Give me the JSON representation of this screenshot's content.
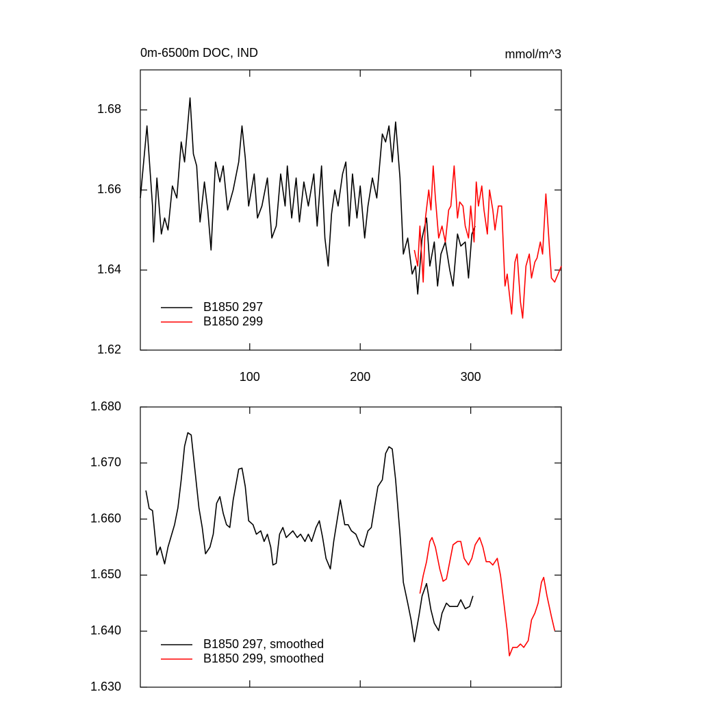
{
  "chart_data": [
    {
      "type": "line",
      "title": "0m-6500m DOC, IND",
      "right_title": "mmol/m^3",
      "xlim": [
        1,
        382
      ],
      "xticks": [
        100,
        200,
        300
      ],
      "x_tick_labels": true,
      "ylim": [
        1.62,
        1.69
      ],
      "yticks": [
        1.62,
        1.64,
        1.66,
        1.68
      ],
      "legend": "lower left",
      "series": [
        {
          "name": "B1850 297",
          "color": "#000000",
          "x": [
            1,
            7,
            12,
            13,
            16,
            20,
            23,
            26,
            30,
            34,
            38,
            41,
            46,
            49,
            52,
            55,
            59,
            62,
            65,
            69,
            73,
            76,
            80,
            85,
            90,
            93,
            96,
            99,
            104,
            107,
            111,
            116,
            120,
            124,
            128,
            132,
            134,
            138,
            142,
            145,
            149,
            153,
            158,
            161,
            165,
            168,
            171,
            174,
            177,
            180,
            184,
            187,
            190,
            193,
            197,
            200,
            204,
            207,
            211,
            215,
            220,
            223,
            226,
            229,
            232,
            236,
            239,
            243,
            247,
            250,
            252,
            256,
            260,
            263,
            267,
            270,
            273,
            277,
            281,
            284,
            288,
            291,
            295,
            298,
            301,
            304
          ],
          "values": [
            1.658,
            1.676,
            1.656,
            1.647,
            1.663,
            1.649,
            1.653,
            1.65,
            1.661,
            1.658,
            1.672,
            1.667,
            1.683,
            1.669,
            1.666,
            1.652,
            1.662,
            1.655,
            1.645,
            1.667,
            1.662,
            1.666,
            1.655,
            1.66,
            1.667,
            1.676,
            1.668,
            1.656,
            1.664,
            1.653,
            1.656,
            1.663,
            1.648,
            1.651,
            1.664,
            1.656,
            1.666,
            1.653,
            1.663,
            1.652,
            1.662,
            1.656,
            1.664,
            1.651,
            1.666,
            1.648,
            1.641,
            1.654,
            1.66,
            1.656,
            1.664,
            1.667,
            1.651,
            1.664,
            1.653,
            1.661,
            1.648,
            1.656,
            1.663,
            1.658,
            1.674,
            1.672,
            1.676,
            1.667,
            1.677,
            1.663,
            1.644,
            1.648,
            1.639,
            1.641,
            1.634,
            1.648,
            1.653,
            1.641,
            1.647,
            1.636,
            1.644,
            1.647,
            1.64,
            1.636,
            1.649,
            1.646,
            1.647,
            1.638,
            1.649,
            1.651
          ]
        },
        {
          "name": "B1850 299",
          "color": "#ff0000",
          "x": [
            249,
            252,
            254,
            257,
            259,
            262,
            264,
            266,
            268,
            271,
            274,
            277,
            280,
            282,
            285,
            288,
            290,
            293,
            295,
            298,
            300,
            303,
            305,
            307,
            310,
            312,
            315,
            317,
            320,
            322,
            325,
            328,
            331,
            333,
            335,
            337,
            340,
            342,
            345,
            347,
            350,
            353,
            355,
            358,
            360,
            363,
            365,
            368,
            369,
            373,
            376,
            379,
            382
          ],
          "values": [
            1.645,
            1.641,
            1.651,
            1.637,
            1.653,
            1.66,
            1.655,
            1.666,
            1.658,
            1.648,
            1.651,
            1.647,
            1.655,
            1.656,
            1.666,
            1.653,
            1.657,
            1.656,
            1.651,
            1.648,
            1.656,
            1.647,
            1.662,
            1.656,
            1.661,
            1.655,
            1.649,
            1.66,
            1.655,
            1.65,
            1.656,
            1.656,
            1.636,
            1.639,
            1.634,
            1.629,
            1.642,
            1.644,
            1.632,
            1.628,
            1.641,
            1.644,
            1.638,
            1.642,
            1.643,
            1.647,
            1.644,
            1.659,
            1.655,
            1.638,
            1.637,
            1.639,
            1.641
          ]
        }
      ]
    },
    {
      "type": "line",
      "xlim": [
        1,
        382
      ],
      "xticks": [
        100,
        200,
        300
      ],
      "x_tick_labels": false,
      "ylim": [
        1.63,
        1.68
      ],
      "yticks": [
        {
          "value": 1.63,
          "label": "1.630"
        },
        {
          "value": 1.64,
          "label": "1.640"
        },
        {
          "value": 1.65,
          "label": "1.650"
        },
        {
          "value": 1.66,
          "label": "1.660"
        },
        {
          "value": 1.67,
          "label": "1.670"
        },
        {
          "value": 1.68,
          "label": "1.680"
        }
      ],
      "legend": "lower left",
      "series": [
        {
          "name": "B1850 297, smoothed",
          "color": "#000000",
          "x": [
            6,
            9,
            12,
            16,
            19,
            23,
            26,
            29,
            32,
            35,
            38,
            41,
            44,
            47,
            50,
            54,
            57,
            60,
            64,
            67,
            70,
            73,
            76,
            79,
            82,
            85,
            90,
            93,
            96,
            99,
            103,
            106,
            110,
            113,
            116,
            119,
            121,
            124,
            127,
            130,
            133,
            136,
            139,
            143,
            146,
            150,
            153,
            156,
            160,
            163,
            166,
            169,
            173,
            176,
            179,
            182,
            186,
            189,
            192,
            196,
            200,
            203,
            207,
            210,
            213,
            216,
            220,
            223,
            226,
            229,
            232,
            236,
            239,
            243,
            246,
            249,
            253,
            256,
            260,
            264,
            267,
            271,
            274,
            278,
            281,
            285,
            288,
            291,
            295,
            299,
            302
          ],
          "values": [
            1.6651,
            1.6619,
            1.6615,
            1.6536,
            1.655,
            1.652,
            1.655,
            1.657,
            1.659,
            1.662,
            1.667,
            1.673,
            1.6754,
            1.675,
            1.6695,
            1.662,
            1.6585,
            1.6538,
            1.655,
            1.6573,
            1.6628,
            1.664,
            1.661,
            1.659,
            1.6585,
            1.6634,
            1.6689,
            1.6691,
            1.6658,
            1.6597,
            1.659,
            1.6573,
            1.6579,
            1.656,
            1.6573,
            1.655,
            1.6518,
            1.6521,
            1.6573,
            1.6585,
            1.6567,
            1.6573,
            1.6579,
            1.6567,
            1.6573,
            1.656,
            1.6573,
            1.656,
            1.6585,
            1.6597,
            1.6567,
            1.653,
            1.6511,
            1.656,
            1.6597,
            1.6634,
            1.659,
            1.659,
            1.6579,
            1.6573,
            1.6554,
            1.655,
            1.6579,
            1.6585,
            1.6622,
            1.6658,
            1.667,
            1.6717,
            1.6729,
            1.6725,
            1.667,
            1.6573,
            1.6487,
            1.645,
            1.642,
            1.6381,
            1.6426,
            1.6463,
            1.6485,
            1.6438,
            1.6414,
            1.6401,
            1.6432,
            1.645,
            1.6444,
            1.6444,
            1.6444,
            1.6456,
            1.644,
            1.6444,
            1.6463
          ]
        },
        {
          "name": "B1850 299, smoothed",
          "color": "#ff0000",
          "x": [
            254,
            257,
            260,
            263,
            265,
            268,
            272,
            275,
            278,
            281,
            284,
            288,
            291,
            294,
            298,
            301,
            304,
            308,
            311,
            314,
            317,
            320,
            324,
            327,
            330,
            333,
            335,
            338,
            342,
            345,
            348,
            352,
            355,
            358,
            361,
            364,
            366,
            369,
            373,
            376
          ],
          "values": [
            1.6467,
            1.6499,
            1.6524,
            1.656,
            1.6567,
            1.655,
            1.6511,
            1.6489,
            1.6493,
            1.6524,
            1.6554,
            1.656,
            1.656,
            1.653,
            1.6518,
            1.653,
            1.6554,
            1.6567,
            1.655,
            1.6524,
            1.6524,
            1.6518,
            1.653,
            1.6499,
            1.645,
            1.6401,
            1.6356,
            1.6371,
            1.6371,
            1.6377,
            1.6371,
            1.6383,
            1.642,
            1.6432,
            1.645,
            1.6487,
            1.6496,
            1.6463,
            1.6426,
            1.6401
          ]
        }
      ]
    }
  ]
}
